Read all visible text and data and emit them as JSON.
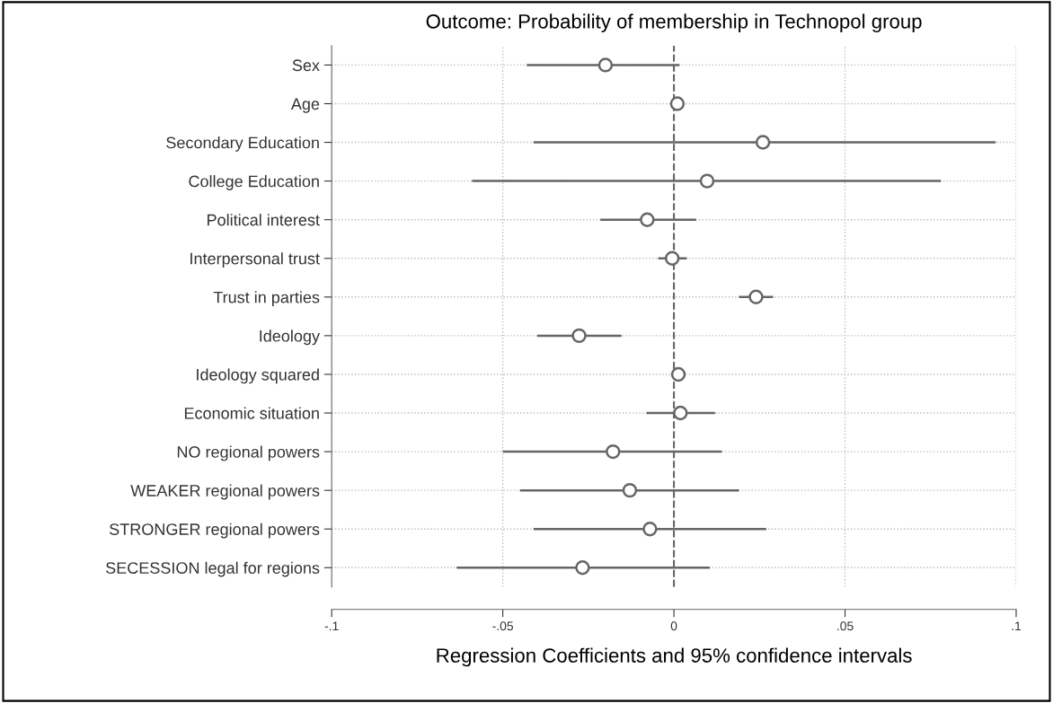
{
  "chart_data": {
    "type": "scatter",
    "orientation": "horizontal",
    "title": "Outcome: Probability of membership in Technopol group",
    "xlabel": "Regression Coefficients and 95% confidence intervals",
    "categories": [
      "Sex",
      "Age",
      "Secondary Education",
      "College Education",
      "Political interest",
      "Interpersonal trust",
      "Trust in parties",
      "Ideology",
      "Ideology squared",
      "Economic situation",
      "NO regional powers",
      "WEAKER regional powers",
      "STRONGER regional powers",
      "SECESSION legal for regions"
    ],
    "series": [
      {
        "color": "#666666",
        "values": [
          -0.02,
          0.001,
          0.026,
          0.0097,
          -0.0078,
          -0.0005,
          0.024,
          -0.0277,
          0.0013,
          0.0019,
          -0.0178,
          -0.0129,
          -0.007,
          -0.0267
        ],
        "errors": [
          [
            -0.043,
            0.0016
          ],
          null,
          [
            -0.041,
            0.094
          ],
          [
            -0.059,
            0.078
          ],
          [
            -0.0215,
            0.0065
          ],
          [
            -0.0046,
            0.0038
          ],
          [
            0.019,
            0.029
          ],
          [
            -0.04,
            -0.0153
          ],
          null,
          [
            -0.008,
            0.012
          ],
          [
            -0.05,
            0.014
          ],
          [
            -0.045,
            0.019
          ],
          [
            -0.041,
            0.027
          ],
          [
            -0.0635,
            0.0105
          ]
        ]
      }
    ],
    "xlim": [
      -0.1,
      0.1
    ],
    "xticks": [
      {
        "value": -0.1,
        "label": "-.1"
      },
      {
        "value": -0.05,
        "label": "-.05"
      },
      0,
      {
        "value": 0.05,
        "label": ".05"
      },
      {
        "value": 0.1,
        "label": ".1"
      }
    ],
    "ref_lines": [
      {
        "axis": "x",
        "value": 0,
        "color": "#666666",
        "line_style": "dashed"
      }
    ],
    "grid": true,
    "marker": "circle"
  }
}
